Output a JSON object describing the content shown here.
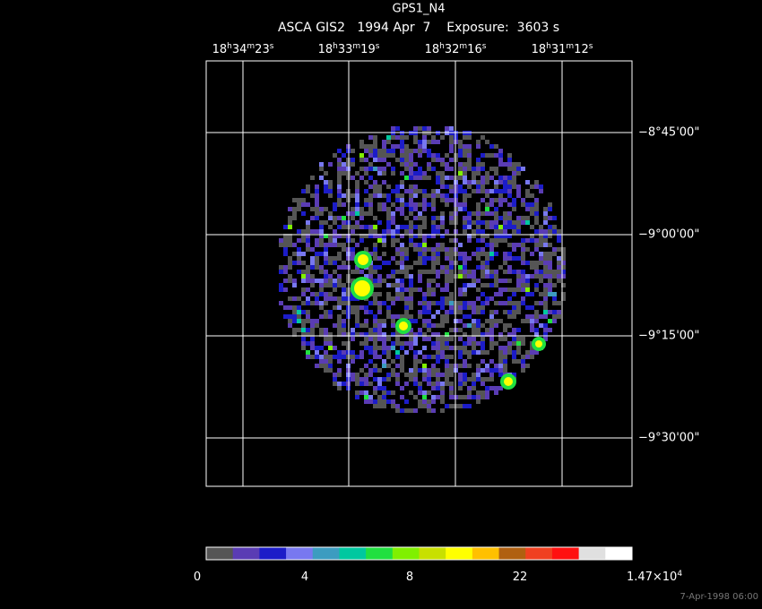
{
  "header": {
    "title": "GPS1_N4",
    "subtitle": "ASCA GIS2   1994 Apr  7    Exposure:  3603 s"
  },
  "ra_labels": [
    [
      "18",
      "h",
      "34",
      "m",
      "23",
      "s"
    ],
    [
      "18",
      "h",
      "33",
      "m",
      "19",
      "s"
    ],
    [
      "18",
      "h",
      "32",
      "m",
      "16",
      "s"
    ],
    [
      "18",
      "h",
      "31",
      "m",
      "12",
      "s"
    ]
  ],
  "dec_labels": [
    "−8°45'00\"",
    "−9°00'00\"",
    "−9°15'00\"",
    "−9°30'00\""
  ],
  "colorbar": {
    "colors": [
      "#555555",
      "#5a3cb4",
      "#1c1cc8",
      "#7878f0",
      "#3c9cc0",
      "#00c8a0",
      "#20e040",
      "#80f000",
      "#c8e000",
      "#ffff00",
      "#ffc000",
      "#b06010",
      "#f04020",
      "#ff1010",
      "#e0e0e0",
      "#ffffff"
    ],
    "labels": [
      [
        "0"
      ],
      [
        "4"
      ],
      [
        "8"
      ],
      [
        "22"
      ],
      [
        "1.47×10",
        "4"
      ]
    ]
  },
  "footer": {
    "timestamp": "7-Apr-1998 06:00"
  }
}
